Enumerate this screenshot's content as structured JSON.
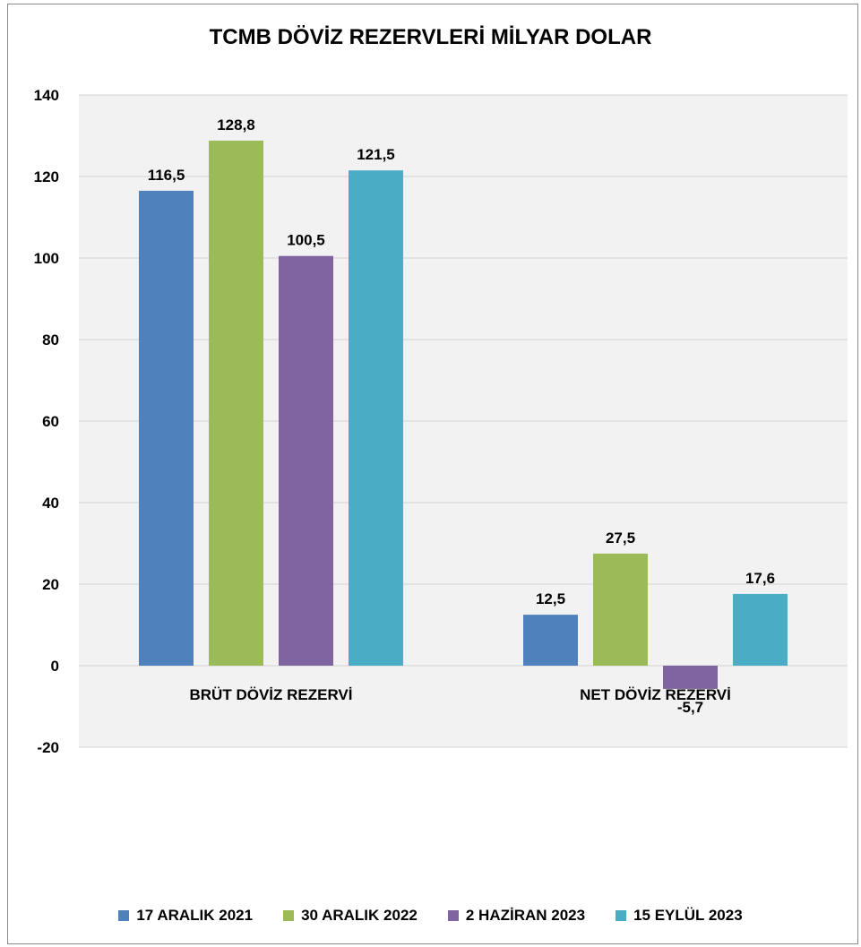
{
  "chart_data": {
    "type": "bar",
    "title": "TCMB DÖVİZ REZERVLERİ MİLYAR DOLAR",
    "categories": [
      "BRÜT DÖVİZ REZERVİ",
      "NET DÖVİZ REZERVİ"
    ],
    "series": [
      {
        "name": "17 ARALIK 2021",
        "color": "#4f81bd",
        "values": [
          116.5,
          12.5
        ],
        "labels": [
          "116,5",
          "12,5"
        ]
      },
      {
        "name": "30 ARALIK 2022",
        "color": "#9bbb59",
        "values": [
          128.8,
          27.5
        ],
        "labels": [
          "128,8",
          "27,5"
        ]
      },
      {
        "name": "2 HAZİRAN 2023",
        "color": "#8064a2",
        "values": [
          100.5,
          -5.7
        ],
        "labels": [
          "100,5",
          "-5,7"
        ]
      },
      {
        "name": "15 EYLÜL 2023",
        "color": "#4bacc6",
        "values": [
          121.5,
          17.6
        ],
        "labels": [
          "121,5",
          "17,6"
        ]
      }
    ],
    "yticks": [
      "-20",
      "0",
      "20",
      "40",
      "60",
      "80",
      "100",
      "120",
      "140"
    ],
    "ylim": [
      -20,
      140
    ],
    "grid": true,
    "legend_position": "bottom"
  }
}
